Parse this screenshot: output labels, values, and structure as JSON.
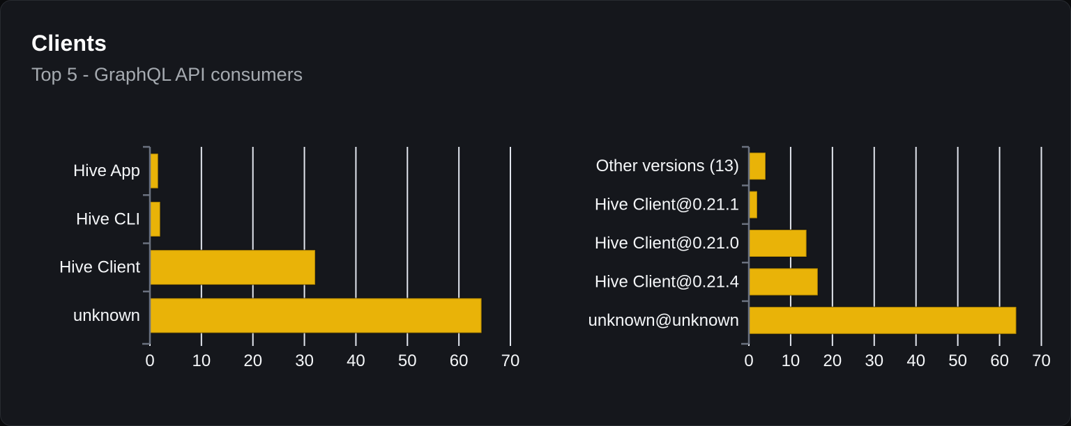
{
  "card": {
    "title": "Clients",
    "subtitle": "Top 5 - GraphQL API consumers"
  },
  "colors": {
    "page_bg": "#0a0b0d",
    "card_bg": "#15171c",
    "card_border": "#282b31",
    "title_text": "#ffffff",
    "subtitle_text": "#a5aab0",
    "bar_fill": "#e9b308",
    "bar_stroke": "rgba(0,0,0,0.28)",
    "gridline": "#e2e6ee",
    "axis_gray": "#6b7280",
    "label_text": "#f4f6f8"
  },
  "chart_data": [
    {
      "type": "bar",
      "orientation": "horizontal",
      "title": "",
      "xlabel": "",
      "ylabel": "",
      "categories": [
        "Hive App",
        "Hive CLI",
        "Hive Client",
        "unknown"
      ],
      "values": [
        1.6,
        2.0,
        32.1,
        64.4
      ],
      "xlim": [
        0,
        70
      ],
      "xticks": [
        0,
        10,
        20,
        30,
        40,
        50,
        60,
        70
      ],
      "grid": true,
      "legend": false
    },
    {
      "type": "bar",
      "orientation": "horizontal",
      "title": "",
      "xlabel": "",
      "ylabel": "",
      "categories": [
        "Other versions (13)",
        "Hive Client@0.21.1",
        "Hive Client@0.21.0",
        "Hive Client@0.21.4",
        "unknown@unknown"
      ],
      "values": [
        4.0,
        2.0,
        13.8,
        16.5,
        64.0
      ],
      "xlim": [
        0,
        70
      ],
      "xticks": [
        0,
        10,
        20,
        30,
        40,
        50,
        60,
        70
      ],
      "grid": true,
      "legend": false
    }
  ]
}
